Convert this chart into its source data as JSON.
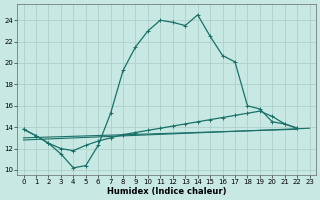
{
  "xlabel": "Humidex (Indice chaleur)",
  "xlim": [
    -0.5,
    23.5
  ],
  "ylim": [
    9.5,
    25.5
  ],
  "yticks": [
    10,
    12,
    14,
    16,
    18,
    20,
    22,
    24
  ],
  "xticks": [
    0,
    1,
    2,
    3,
    4,
    5,
    6,
    7,
    8,
    9,
    10,
    11,
    12,
    13,
    14,
    15,
    16,
    17,
    18,
    19,
    20,
    21,
    22,
    23
  ],
  "bg_color": "#c8e8e4",
  "line_color": "#1a7068",
  "grid_color": "#b0d0cc",
  "curve1_x": [
    0,
    1,
    2,
    3,
    4,
    5,
    6,
    7,
    8,
    9,
    10,
    11,
    12,
    13,
    14,
    15,
    16,
    17,
    18,
    19,
    20,
    21,
    22
  ],
  "curve1_y": [
    13.8,
    13.2,
    12.5,
    11.5,
    10.2,
    10.4,
    12.3,
    15.3,
    19.3,
    21.5,
    23.0,
    24.0,
    23.8,
    23.5,
    24.5,
    22.5,
    20.7,
    20.1,
    16.0,
    15.7,
    14.5,
    14.3,
    13.9
  ],
  "curve2_x": [
    0,
    1,
    2,
    3,
    4,
    5,
    6,
    7,
    8,
    9,
    10,
    11,
    12,
    13,
    14,
    15,
    16,
    17,
    18,
    19,
    20,
    21,
    22
  ],
  "curve2_y": [
    13.8,
    13.2,
    12.5,
    12.0,
    11.8,
    12.3,
    12.7,
    13.0,
    13.3,
    13.5,
    13.7,
    13.9,
    14.1,
    14.3,
    14.5,
    14.7,
    14.9,
    15.1,
    15.3,
    15.5,
    15.0,
    14.3,
    13.9
  ],
  "line3_x": [
    0,
    22
  ],
  "line3_y": [
    13.0,
    13.8
  ],
  "line4_x": [
    0,
    23
  ],
  "line4_y": [
    12.8,
    13.9
  ]
}
